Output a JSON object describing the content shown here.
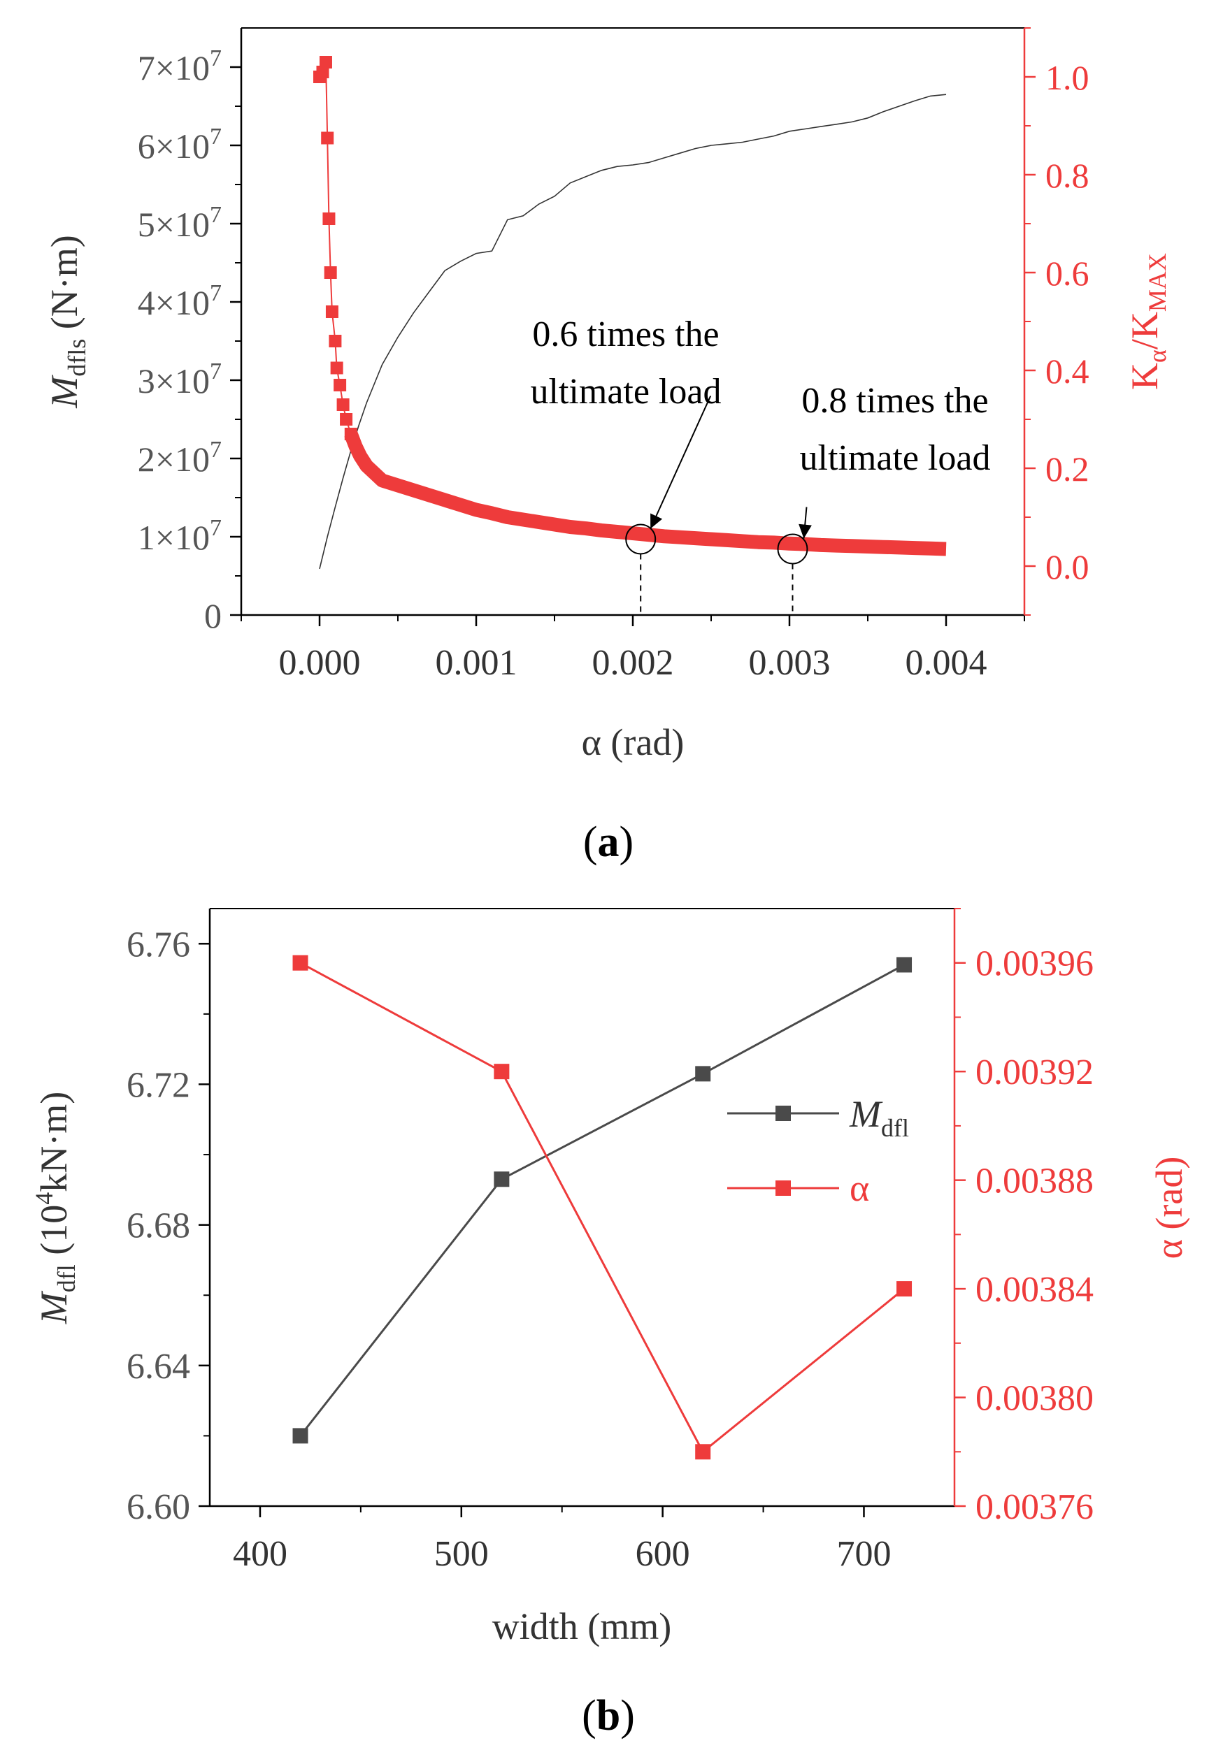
{
  "chart_data": [
    {
      "panel_label": "a",
      "type": "line",
      "xlabel": "α (rad)",
      "x_ticks": [
        "0.000",
        "0.001",
        "0.002",
        "0.003",
        "0.004"
      ],
      "x_tick_values": [
        0,
        0.001,
        0.002,
        0.003,
        0.004
      ],
      "xlim": [
        -0.0005,
        0.0045
      ],
      "y_left": {
        "label_main": "M",
        "label_sub": "dfls",
        "label_unit": " (N·m)",
        "lim": [
          0,
          75000000
        ],
        "ticks": [
          {
            "value": 0,
            "mant": "0",
            "exp": ""
          },
          {
            "value": 10000000,
            "mant": "1×10",
            "exp": "7"
          },
          {
            "value": 20000000,
            "mant": "2×10",
            "exp": "7"
          },
          {
            "value": 30000000,
            "mant": "3×10",
            "exp": "7"
          },
          {
            "value": 40000000,
            "mant": "4×10",
            "exp": "7"
          },
          {
            "value": 50000000,
            "mant": "5×10",
            "exp": "7"
          },
          {
            "value": 60000000,
            "mant": "6×10",
            "exp": "7"
          },
          {
            "value": 70000000,
            "mant": "7×10",
            "exp": "7"
          }
        ]
      },
      "y_right": {
        "label_k": "K",
        "label_sub1": "α",
        "label_slash": "/K",
        "label_sub2": "MAX",
        "lim": [
          -0.1,
          1.1
        ],
        "ticks": [
          "0.0",
          "0.2",
          "0.4",
          "0.6",
          "0.8",
          "1.0"
        ],
        "tick_values": [
          0,
          0.2,
          0.4,
          0.6,
          0.8,
          1.0
        ],
        "color": "#ee3b3b"
      },
      "series": [
        {
          "name": "M_dfls",
          "axis": "left",
          "color": "#333333",
          "points": [
            [
              0.0,
              5900000
            ],
            [
              5e-05,
              10000000
            ],
            [
              0.0001,
              13800000
            ],
            [
              0.00015,
              17500000
            ],
            [
              0.0002,
              21000000
            ],
            [
              0.00025,
              24200000
            ],
            [
              0.0003,
              27100000
            ],
            [
              0.0004,
              32000000
            ],
            [
              0.0005,
              35500000
            ],
            [
              0.0006,
              38600000
            ],
            [
              0.0007,
              41300000
            ],
            [
              0.0008,
              44000000
            ],
            [
              0.0009,
              45200000
            ],
            [
              0.001,
              46200000
            ],
            [
              0.0011,
              46500000
            ],
            [
              0.0012,
              50500000
            ],
            [
              0.0013,
              51000000
            ],
            [
              0.0014,
              52500000
            ],
            [
              0.0015,
              53500000
            ],
            [
              0.0016,
              55200000
            ],
            [
              0.0017,
              56000000
            ],
            [
              0.0018,
              56800000
            ],
            [
              0.0019,
              57300000
            ],
            [
              0.002,
              57500000
            ],
            [
              0.0021,
              57800000
            ],
            [
              0.0022,
              58400000
            ],
            [
              0.0023,
              59000000
            ],
            [
              0.0024,
              59600000
            ],
            [
              0.0025,
              60000000
            ],
            [
              0.0026,
              60200000
            ],
            [
              0.0027,
              60400000
            ],
            [
              0.0028,
              60800000
            ],
            [
              0.0029,
              61200000
            ],
            [
              0.003,
              61800000
            ],
            [
              0.0031,
              62100000
            ],
            [
              0.0032,
              62400000
            ],
            [
              0.0033,
              62700000
            ],
            [
              0.0034,
              63000000
            ],
            [
              0.0035,
              63500000
            ],
            [
              0.0036,
              64300000
            ],
            [
              0.0037,
              65000000
            ],
            [
              0.0038,
              65700000
            ],
            [
              0.0039,
              66300000
            ],
            [
              0.004,
              66500000
            ]
          ]
        },
        {
          "name": "K_alpha/K_MAX",
          "axis": "right",
          "color": "#ee3b3b",
          "points": [
            [
              0.0,
              1.0
            ],
            [
              2e-05,
              1.01
            ],
            [
              4e-05,
              1.03
            ],
            [
              5e-05,
              0.875
            ],
            [
              6e-05,
              0.71
            ],
            [
              7e-05,
              0.6
            ],
            [
              8e-05,
              0.52
            ],
            [
              0.0001,
              0.46
            ],
            [
              0.00011,
              0.405
            ],
            [
              0.00013,
              0.37
            ],
            [
              0.00015,
              0.33
            ],
            [
              0.00017,
              0.3
            ],
            [
              0.0002,
              0.27
            ],
            [
              0.00023,
              0.245
            ],
            [
              0.00026,
              0.225
            ],
            [
              0.0003,
              0.205
            ],
            [
              0.00035,
              0.19
            ],
            [
              0.0004,
              0.175
            ],
            [
              0.0005,
              0.165
            ],
            [
              0.0006,
              0.155
            ],
            [
              0.0007,
              0.145
            ],
            [
              0.0008,
              0.135
            ],
            [
              0.0009,
              0.125
            ],
            [
              0.001,
              0.115
            ],
            [
              0.0011,
              0.108
            ],
            [
              0.0012,
              0.1
            ],
            [
              0.0013,
              0.095
            ],
            [
              0.0014,
              0.09
            ],
            [
              0.0015,
              0.085
            ],
            [
              0.0016,
              0.08
            ],
            [
              0.0017,
              0.077
            ],
            [
              0.0018,
              0.073
            ],
            [
              0.0019,
              0.07
            ],
            [
              0.002,
              0.067
            ],
            [
              0.0021,
              0.064
            ],
            [
              0.0022,
              0.061
            ],
            [
              0.0023,
              0.059
            ],
            [
              0.0024,
              0.057
            ],
            [
              0.0025,
              0.055
            ],
            [
              0.0026,
              0.053
            ],
            [
              0.0027,
              0.051
            ],
            [
              0.0028,
              0.049
            ],
            [
              0.0029,
              0.048
            ],
            [
              0.003,
              0.046
            ],
            [
              0.0031,
              0.045
            ],
            [
              0.0032,
              0.043
            ],
            [
              0.0033,
              0.042
            ],
            [
              0.0034,
              0.041
            ],
            [
              0.0035,
              0.04
            ],
            [
              0.0036,
              0.039
            ],
            [
              0.0037,
              0.038
            ],
            [
              0.0038,
              0.037
            ],
            [
              0.0039,
              0.036
            ],
            [
              0.004,
              0.035
            ]
          ]
        }
      ],
      "markers": [
        {
          "x": 0.00205,
          "y_right": 0.055,
          "label_line1": "0.6 times the",
          "label_line2": "ultimate load"
        },
        {
          "x": 0.00302,
          "y_right": 0.035,
          "label_line1": "0.8 times the",
          "label_line2": "ultimate load"
        }
      ]
    },
    {
      "panel_label": "b",
      "type": "line",
      "xlabel": "width (mm)",
      "x_ticks": [
        "400",
        "500",
        "600",
        "700"
      ],
      "x_tick_values": [
        400,
        500,
        600,
        700
      ],
      "xlim": [
        375,
        745
      ],
      "y_left": {
        "label_main": "M",
        "label_sub": "dfl",
        "label_pre": " (10",
        "label_exp": "4",
        "label_post": "kN·m)",
        "lim": [
          6.6,
          6.77
        ],
        "ticks": [
          "6.60",
          "6.64",
          "6.68",
          "6.72",
          "6.76"
        ],
        "tick_values": [
          6.6,
          6.64,
          6.68,
          6.72,
          6.76
        ]
      },
      "y_right": {
        "label": "α (rad)",
        "lim": [
          0.00376,
          0.00398
        ],
        "ticks": [
          "0.00376",
          "0.00380",
          "0.00384",
          "0.00388",
          "0.00392",
          "0.00396"
        ],
        "tick_values": [
          0.00376,
          0.0038,
          0.00384,
          0.00388,
          0.00392,
          0.00396
        ],
        "color": "#ee3b3b"
      },
      "categories": [
        420,
        520,
        620,
        720
      ],
      "series": [
        {
          "name": "M",
          "name_sub": "dfl",
          "axis": "left",
          "color": "#4a4a4a",
          "values": [
            6.62,
            6.693,
            6.723,
            6.754
          ]
        },
        {
          "name": "α",
          "name_sub": "",
          "axis": "right",
          "color": "#ee3b3b",
          "values": [
            0.00396,
            0.00392,
            0.00378,
            0.00384
          ]
        }
      ]
    }
  ]
}
